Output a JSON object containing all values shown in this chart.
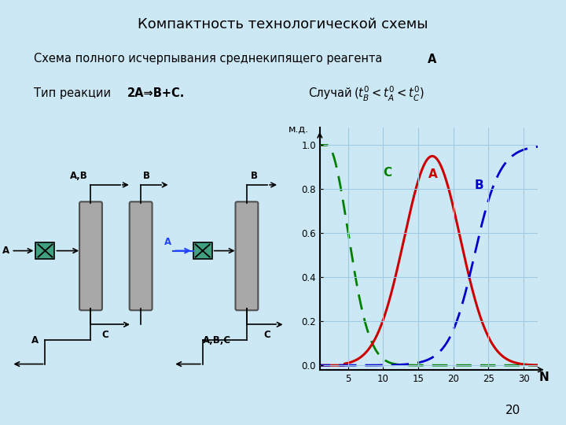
{
  "bg_color": "#cce8f4",
  "title": "Компактность технологической схемы",
  "subtitle": "Схема полного исчерпывания среднекипящего реагента А",
  "reaction_text": "Тип реакции ",
  "reaction_formula": "2А⇒В+С.",
  "case_text": "Случай",
  "page_num": "20",
  "graph": {
    "xlim": [
      1,
      32
    ],
    "ylim": [
      -0.02,
      1.08
    ],
    "xticks": [
      5,
      10,
      15,
      20,
      25,
      30
    ],
    "yticks": [
      0.0,
      0.2,
      0.4,
      0.6,
      0.8,
      1.0
    ],
    "xlabel": "N",
    "ylabel": "м.д.",
    "grid_color": "#a0c8e0",
    "curve_C": {
      "color": "#008000"
    },
    "curve_A": {
      "color": "#cc0000"
    },
    "curve_B": {
      "color": "#0000cc"
    }
  },
  "columns": {
    "col_color": "#a8a8a8",
    "col_edge": "#505050",
    "mixer_color": "#40a080"
  }
}
